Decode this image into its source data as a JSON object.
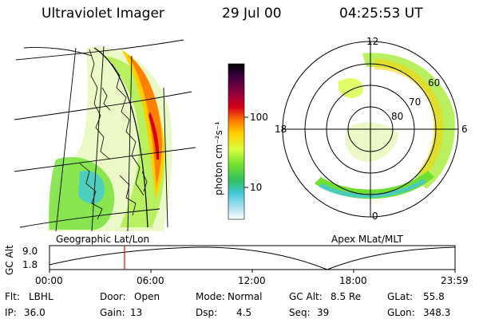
{
  "header": {
    "instrument": "Ultraviolet Imager",
    "date": "29 Jul 00",
    "time": "04:25:53 UT"
  },
  "colorbar": {
    "unit_label": "photon cm⁻²s⁻¹",
    "ticks": [
      "100",
      "10"
    ],
    "colors": [
      "#000000",
      "#3a0040",
      "#8a0040",
      "#d80018",
      "#ff8000",
      "#ffd000",
      "#d8ff40",
      "#70e030",
      "#30c060",
      "#40c8d8",
      "#a8e0f0",
      "#ffffff"
    ]
  },
  "geo_panel": {
    "caption": "Geographic Lat/Lon"
  },
  "polar_panel": {
    "caption": "Apex MLat/MLT",
    "mlt_labels": [
      "12",
      "18",
      "6",
      "0"
    ],
    "lat_labels": [
      "60",
      "70",
      "80"
    ]
  },
  "orbit_plot": {
    "ylabel": "GC Alt",
    "yticks": [
      "9.0",
      "1.8"
    ],
    "xticks": [
      "00:00",
      "06:00",
      "12:00",
      "18:00",
      "23:59"
    ],
    "marker_time": "04:25:53",
    "marker_fraction": 0.185,
    "marker_color": "#ff0000"
  },
  "status": {
    "row1": [
      {
        "key": "Flt:",
        "val": "LBHL"
      },
      {
        "key": "Door:",
        "val": "Open"
      },
      {
        "key": "Mode:",
        "val": "Normal"
      },
      {
        "key": "GC Alt:",
        "val": "8.5 Re"
      },
      {
        "key": "GLat:",
        "val": "55.8"
      }
    ],
    "row2": [
      {
        "key": "IP:",
        "val": "36.0"
      },
      {
        "key": "Gain:",
        "val": "13"
      },
      {
        "key": "Dsp:",
        "val": "4.5"
      },
      {
        "key": "Seq:",
        "val": "39"
      },
      {
        "key": "GLon:",
        "val": "348.3"
      }
    ]
  }
}
